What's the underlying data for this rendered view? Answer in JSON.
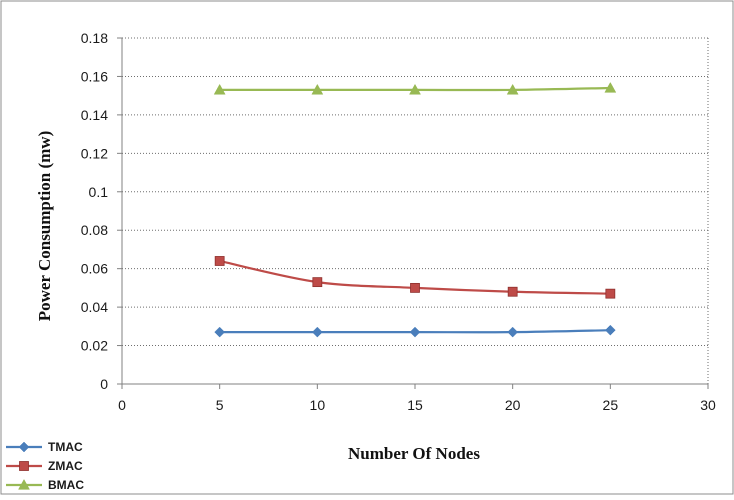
{
  "chart_data": {
    "type": "line",
    "title": "",
    "xlabel": "Number Of Nodes",
    "ylabel": "Power Consumption (mw)",
    "xlim": [
      0,
      30
    ],
    "ylim": [
      0,
      0.18
    ],
    "x_ticks": [
      0,
      5,
      10,
      15,
      20,
      25,
      30
    ],
    "y_ticks": [
      0,
      0.02,
      0.04,
      0.06,
      0.08,
      0.1,
      0.12,
      0.14,
      0.16,
      0.18
    ],
    "x_tick_labels": [
      "0",
      "5",
      "10",
      "15",
      "20",
      "25",
      "30"
    ],
    "y_tick_labels": [
      "0",
      "0.02",
      "0.04",
      "0.06",
      "0.08",
      "0.1",
      "0.12",
      "0.14",
      "0.16",
      "0.18"
    ],
    "grid": "horizontal dotted",
    "legend_position": "bottom-left",
    "x": [
      5,
      10,
      15,
      20,
      25
    ],
    "series": [
      {
        "name": "TMAC",
        "values": [
          0.027,
          0.027,
          0.027,
          0.027,
          0.028
        ],
        "color": "#4a7ebb",
        "marker": "diamond"
      },
      {
        "name": "ZMAC",
        "values": [
          0.064,
          0.053,
          0.05,
          0.048,
          0.047
        ],
        "color": "#be4b48",
        "marker": "square"
      },
      {
        "name": "BMAC",
        "values": [
          0.153,
          0.153,
          0.153,
          0.153,
          0.154
        ],
        "color": "#98b954",
        "marker": "triangle"
      }
    ]
  }
}
